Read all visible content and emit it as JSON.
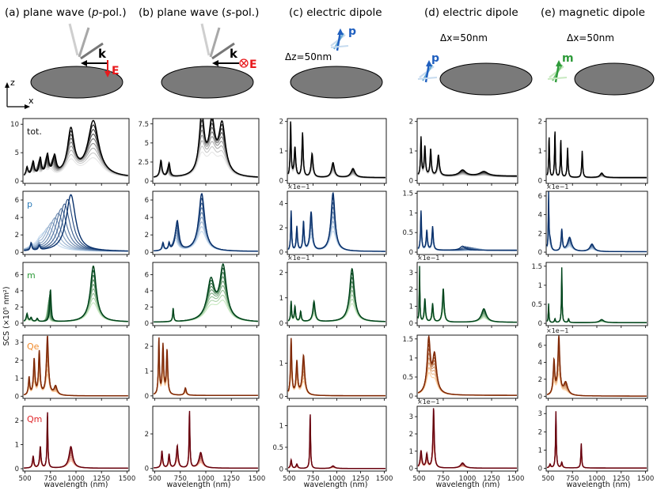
{
  "columns": [
    {
      "label_prefix": "(a) plane wave (",
      "label_italic": "p",
      "label_suffix": "-pol.)"
    },
    {
      "label_prefix": "(b) plane wave (",
      "label_italic": "s",
      "label_suffix": "-pol.)"
    },
    {
      "label_prefix": "(c) electric dipole",
      "label_italic": "",
      "label_suffix": ""
    },
    {
      "label_prefix": "(d) electric dipole",
      "label_italic": "",
      "label_suffix": ""
    },
    {
      "label_prefix": "(e) magnetic dipole",
      "label_italic": "",
      "label_suffix": ""
    }
  ],
  "schematic": {
    "axis_z": "z",
    "axis_x": "x",
    "k_label": "k",
    "E_label": "E",
    "p_label": "p",
    "m_label": "m",
    "dz_label": "Δz=50nm",
    "dx_label_d": "Δx=50nm",
    "dx_label_e": "Δx=50nm",
    "colors": {
      "E": "#e8191c",
      "p": "#1f5fbf",
      "m": "#2e9b3a",
      "particle": "#7a7a7a"
    }
  },
  "rows": [
    {
      "label": "tot.",
      "color": "#111111"
    },
    {
      "label": "p",
      "color": "#2b7bb9"
    },
    {
      "label": "m",
      "color": "#2e9b3a"
    },
    {
      "label": "Qe",
      "color": "#f08a2b"
    },
    {
      "label": "Qm",
      "color": "#e0262a"
    }
  ],
  "ylabel": "SCS (×10⁵ nm²)",
  "xlabel": "wavelength (nm)",
  "chart_data": {
    "type": "line",
    "xlim": [
      480,
      1520
    ],
    "xticks": [
      500,
      750,
      1000,
      1250,
      1500
    ],
    "families": {
      "tot.": {
        "light": "#e6e6e6",
        "dark": "#000000"
      },
      "p": {
        "light": "#c6dbef",
        "dark": "#08306b"
      },
      "m": {
        "light": "#c7e9c0",
        "dark": "#00441b"
      },
      "Qe": {
        "light": "#fdd0a2",
        "dark": "#7f2704"
      },
      "Qm": {
        "light": "#fcbba1",
        "dark": "#67000d"
      }
    },
    "panels": [
      {
        "col": 0,
        "row": "tot.",
        "yticks": [
          0,
          5,
          10
        ],
        "ylim": [
          -0.4,
          11
        ],
        "scale": "",
        "base": 0.6,
        "peaks": [
          [
            520,
            1.6,
            12,
            0
          ],
          [
            580,
            2.5,
            14,
            -20
          ],
          [
            650,
            3.0,
            14,
            -30
          ],
          [
            720,
            3.5,
            16,
            -30
          ],
          [
            790,
            3.2,
            20,
            -40
          ],
          [
            950,
            8.0,
            40,
            0
          ],
          [
            1170,
            9.8,
            65,
            0
          ]
        ]
      },
      {
        "col": 1,
        "row": "tot.",
        "yticks": [
          0,
          2.5,
          5,
          7.5
        ],
        "ylim": [
          -0.3,
          8.2
        ],
        "scale": "",
        "base": 0.4,
        "peaks": [
          [
            560,
            2.2,
            12,
            0
          ],
          [
            640,
            1.8,
            12,
            -20
          ],
          [
            960,
            7.8,
            30,
            0
          ],
          [
            1060,
            6.6,
            35,
            0
          ],
          [
            1160,
            6.6,
            40,
            0
          ]
        ]
      },
      {
        "col": 2,
        "row": "tot.",
        "yticks": [
          0,
          1,
          2
        ],
        "ylim": [
          -0.1,
          2.1
        ],
        "scale": "",
        "base": 0.1,
        "peaks": [
          [
            515,
            1.9,
            6,
            0
          ],
          [
            560,
            1.0,
            10,
            0
          ],
          [
            640,
            1.5,
            8,
            0
          ],
          [
            740,
            0.8,
            12,
            0
          ],
          [
            960,
            0.5,
            18,
            0
          ],
          [
            1170,
            0.3,
            25,
            0
          ]
        ]
      },
      {
        "col": 3,
        "row": "tot.",
        "yticks": [
          0,
          1,
          2
        ],
        "ylim": [
          -0.1,
          2.1
        ],
        "scale": "",
        "base": 0.15,
        "peaks": [
          [
            520,
            1.3,
            6,
            0
          ],
          [
            560,
            1.0,
            8,
            0
          ],
          [
            620,
            0.9,
            8,
            0
          ],
          [
            700,
            0.7,
            12,
            0
          ],
          [
            950,
            0.2,
            40,
            0
          ],
          [
            1170,
            0.15,
            50,
            0
          ]
        ]
      },
      {
        "col": 4,
        "row": "tot.",
        "yticks": [
          0,
          1,
          2
        ],
        "ylim": [
          -0.1,
          2.1
        ],
        "scale": "",
        "base": 0.1,
        "peaks": [
          [
            510,
            1.4,
            5,
            0
          ],
          [
            570,
            1.6,
            5,
            0
          ],
          [
            630,
            1.3,
            5,
            0
          ],
          [
            700,
            1.0,
            6,
            0
          ],
          [
            850,
            0.9,
            6,
            0
          ],
          [
            1050,
            0.15,
            20,
            0
          ]
        ]
      },
      {
        "col": 0,
        "row": "p",
        "yticks": [
          0,
          2,
          4,
          6
        ],
        "ylim": [
          -0.25,
          7
        ],
        "scale": "",
        "base": 0.1,
        "peaks": [
          [
            560,
            0.9,
            8,
            0
          ],
          [
            640,
            0.5,
            10,
            0
          ],
          [
            950,
            6.5,
            55,
            -250
          ]
        ]
      },
      {
        "col": 1,
        "row": "p",
        "yticks": [
          0,
          2,
          4,
          6
        ],
        "ylim": [
          -0.25,
          7
        ],
        "scale": "",
        "base": 0.1,
        "peaks": [
          [
            580,
            0.9,
            10,
            0
          ],
          [
            640,
            0.8,
            8,
            0
          ],
          [
            720,
            3.4,
            20,
            -20
          ],
          [
            960,
            6.6,
            35,
            0
          ]
        ]
      },
      {
        "col": 2,
        "row": "p",
        "yticks": [
          0,
          2,
          4
        ],
        "ylim": [
          -0.2,
          5
        ],
        "scale": "×1e−1",
        "base": 0.05,
        "peaks": [
          [
            520,
            3.3,
            6,
            0
          ],
          [
            580,
            2.0,
            8,
            0
          ],
          [
            650,
            2.4,
            8,
            0
          ],
          [
            730,
            3.2,
            14,
            0
          ],
          [
            960,
            4.8,
            25,
            0
          ]
        ]
      },
      {
        "col": 3,
        "row": "p",
        "yticks": [
          0,
          0.5,
          1,
          1.5
        ],
        "ylim": [
          -0.06,
          1.55
        ],
        "scale": "",
        "base": 0.05,
        "peaks": [
          [
            520,
            1.0,
            6,
            0
          ],
          [
            580,
            0.5,
            8,
            0
          ],
          [
            640,
            0.6,
            8,
            0
          ],
          [
            950,
            0.1,
            30,
            200
          ]
        ]
      },
      {
        "col": 4,
        "row": "p",
        "yticks": [
          0,
          2,
          4,
          6
        ],
        "ylim": [
          -0.25,
          6.5
        ],
        "scale": "×1e−1",
        "base": 0.05,
        "peaks": [
          [
            505,
            6.0,
            4,
            0
          ],
          [
            520,
            1.2,
            12,
            0
          ],
          [
            640,
            2.3,
            8,
            0
          ],
          [
            720,
            1.5,
            25,
            0
          ],
          [
            950,
            0.8,
            25,
            0
          ]
        ]
      },
      {
        "col": 0,
        "row": "m",
        "yticks": [
          0,
          2,
          4,
          6
        ],
        "ylim": [
          -0.3,
          7.5
        ],
        "scale": "",
        "base": 0.15,
        "peaks": [
          [
            520,
            1.0,
            10,
            0
          ],
          [
            560,
            0.5,
            10,
            0
          ],
          [
            620,
            0.4,
            10,
            0
          ],
          [
            750,
            4.0,
            8,
            -30
          ],
          [
            1170,
            6.9,
            35,
            0
          ]
        ]
      },
      {
        "col": 1,
        "row": "m",
        "yticks": [
          0,
          2,
          4,
          6
        ],
        "ylim": [
          -0.3,
          7.5
        ],
        "scale": "",
        "base": 0.1,
        "peaks": [
          [
            680,
            1.7,
            6,
            0
          ],
          [
            1050,
            4.9,
            45,
            0
          ],
          [
            1170,
            6.6,
            40,
            0
          ]
        ]
      },
      {
        "col": 2,
        "row": "m",
        "yticks": [
          0,
          1,
          2
        ],
        "ylim": [
          -0.1,
          2.4
        ],
        "scale": "×1e−1",
        "base": 0.05,
        "peaks": [
          [
            520,
            0.8,
            6,
            0
          ],
          [
            560,
            0.6,
            8,
            0
          ],
          [
            620,
            0.4,
            8,
            0
          ],
          [
            760,
            0.8,
            14,
            0
          ],
          [
            1160,
            2.1,
            30,
            0
          ]
        ]
      },
      {
        "col": 3,
        "row": "m",
        "yticks": [
          0,
          1,
          2,
          3
        ],
        "ylim": [
          -0.15,
          3.6
        ],
        "scale": "×1e−1",
        "base": 0.05,
        "peaks": [
          [
            505,
            3.3,
            4,
            0
          ],
          [
            560,
            1.4,
            8,
            0
          ],
          [
            640,
            1.1,
            8,
            0
          ],
          [
            750,
            2.0,
            10,
            0
          ],
          [
            1170,
            0.8,
            30,
            0
          ]
        ]
      },
      {
        "col": 4,
        "row": "m",
        "yticks": [
          0,
          0.5,
          1,
          1.5
        ],
        "ylim": [
          -0.06,
          1.6
        ],
        "scale": "",
        "base": 0.02,
        "peaks": [
          [
            505,
            0.5,
            4,
            0
          ],
          [
            570,
            0.1,
            6,
            0
          ],
          [
            640,
            1.45,
            4,
            0
          ],
          [
            710,
            0.1,
            6,
            0
          ],
          [
            1050,
            0.08,
            25,
            0
          ]
        ]
      },
      {
        "col": 0,
        "row": "Qe",
        "yticks": [
          0,
          1,
          2,
          3
        ],
        "ylim": [
          -0.12,
          3.4
        ],
        "scale": "",
        "base": 0.02,
        "peaks": [
          [
            540,
            1.0,
            8,
            0
          ],
          [
            590,
            2.0,
            9,
            0
          ],
          [
            640,
            2.4,
            9,
            0
          ],
          [
            720,
            3.3,
            12,
            0
          ],
          [
            800,
            0.5,
            18,
            0
          ]
        ]
      },
      {
        "col": 1,
        "row": "Qe",
        "yticks": [
          0,
          1,
          2
        ],
        "ylim": [
          -0.1,
          2.45
        ],
        "scale": "",
        "base": 0.02,
        "peaks": [
          [
            540,
            2.3,
            6,
            0
          ],
          [
            580,
            2.0,
            8,
            0
          ],
          [
            620,
            1.8,
            8,
            0
          ],
          [
            800,
            0.3,
            10,
            0
          ]
        ]
      },
      {
        "col": 2,
        "row": "Qe",
        "yticks": [
          0,
          1
        ],
        "ylim": [
          -0.06,
          1.85
        ],
        "scale": "",
        "base": 0.02,
        "peaks": [
          [
            520,
            1.7,
            8,
            0
          ],
          [
            580,
            1.0,
            10,
            0
          ],
          [
            650,
            1.2,
            15,
            0
          ]
        ]
      },
      {
        "col": 3,
        "row": "Qe",
        "yticks": [
          0,
          0.5,
          1,
          1.5
        ],
        "ylim": [
          -0.06,
          1.6
        ],
        "scale": "",
        "base": 0.02,
        "peaks": [
          [
            600,
            1.4,
            20,
            0
          ],
          [
            660,
            1.0,
            25,
            0
          ]
        ]
      },
      {
        "col": 4,
        "row": "Qe",
        "yticks": [
          0,
          2,
          4,
          6
        ],
        "ylim": [
          -0.25,
          7.2
        ],
        "scale": "×1e−1",
        "base": 0.02,
        "peaks": [
          [
            560,
            4.0,
            10,
            0
          ],
          [
            610,
            6.8,
            12,
            0
          ],
          [
            680,
            1.5,
            25,
            0
          ]
        ]
      },
      {
        "col": 0,
        "row": "Qm",
        "yticks": [
          0,
          1,
          2
        ],
        "ylim": [
          -0.1,
          2.6
        ],
        "scale": "",
        "base": 0.02,
        "peaks": [
          [
            580,
            0.5,
            8,
            0
          ],
          [
            650,
            0.9,
            8,
            0
          ],
          [
            720,
            2.4,
            5,
            0
          ],
          [
            950,
            0.9,
            22,
            0
          ]
        ]
      },
      {
        "col": 1,
        "row": "Qm",
        "yticks": [
          0,
          2
        ],
        "ylim": [
          -0.15,
          3.6
        ],
        "scale": "",
        "base": 0.02,
        "peaks": [
          [
            570,
            1.0,
            8,
            0
          ],
          [
            640,
            0.8,
            8,
            0
          ],
          [
            720,
            1.3,
            10,
            0
          ],
          [
            840,
            3.4,
            5,
            0
          ],
          [
            950,
            0.9,
            20,
            0
          ]
        ]
      },
      {
        "col": 2,
        "row": "Qm",
        "yticks": [
          0,
          0.5,
          1
        ],
        "ylim": [
          -0.05,
          1.45
        ],
        "scale": "",
        "base": 0.01,
        "peaks": [
          [
            520,
            0.2,
            8,
            0
          ],
          [
            580,
            0.1,
            10,
            0
          ],
          [
            720,
            1.3,
            5,
            0
          ],
          [
            960,
            0.06,
            20,
            0
          ]
        ]
      },
      {
        "col": 3,
        "row": "Qm",
        "yticks": [
          0,
          1,
          2,
          3
        ],
        "ylim": [
          -0.15,
          3.6
        ],
        "scale": "×1e−1",
        "base": 0.02,
        "peaks": [
          [
            520,
            1.0,
            10,
            0
          ],
          [
            580,
            0.8,
            10,
            0
          ],
          [
            650,
            3.5,
            8,
            0
          ],
          [
            950,
            0.3,
            25,
            0
          ]
        ]
      },
      {
        "col": 4,
        "row": "Qm",
        "yticks": [
          0,
          1,
          2,
          3
        ],
        "ylim": [
          -0.15,
          3.4
        ],
        "scale": "",
        "base": 0.02,
        "peaks": [
          [
            520,
            0.2,
            8,
            0
          ],
          [
            580,
            3.1,
            5,
            0
          ],
          [
            640,
            0.3,
            8,
            0
          ],
          [
            840,
            1.4,
            5,
            0
          ]
        ]
      }
    ]
  }
}
